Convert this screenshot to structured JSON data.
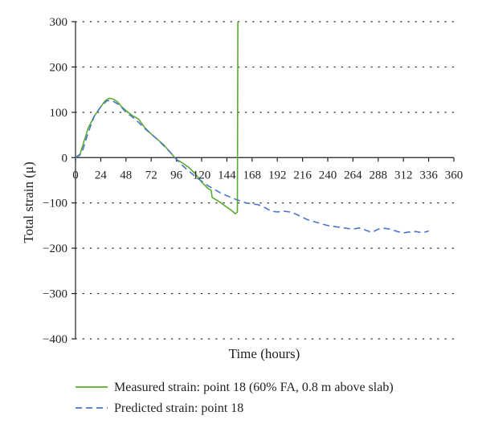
{
  "chart_data": {
    "type": "line",
    "title": "",
    "xlabel": "Time (hours)",
    "ylabel": "Total strain (μ)",
    "xlim": [
      0,
      360
    ],
    "ylim": [
      -400,
      300
    ],
    "xticks": [
      0,
      24,
      48,
      72,
      96,
      120,
      144,
      168,
      192,
      216,
      240,
      264,
      288,
      312,
      336,
      360
    ],
    "yticks": [
      -400,
      -300,
      -200,
      -100,
      0,
      100,
      200,
      300
    ],
    "x_tick_labels": [
      "0",
      "24",
      "48",
      "72",
      "96",
      "120",
      "144",
      "168",
      "192",
      "216",
      "240",
      "264",
      "288",
      "312",
      "336",
      "360"
    ],
    "y_tick_labels": [
      "−400",
      "−300",
      "−200",
      "−100",
      "0",
      "100",
      "200",
      "300"
    ],
    "grid": "horizontal dotted",
    "legend_position": "bottom",
    "series": [
      {
        "name": "Measured strain: point 18 (60% FA, 0.8 m above slab)",
        "color": "#5aac2e",
        "style": "solid",
        "points": [
          [
            0,
            0
          ],
          [
            4,
            5
          ],
          [
            8,
            35
          ],
          [
            12,
            65
          ],
          [
            18,
            92
          ],
          [
            24,
            112
          ],
          [
            28,
            125
          ],
          [
            32,
            131
          ],
          [
            36,
            129
          ],
          [
            40,
            123
          ],
          [
            44,
            112
          ],
          [
            48,
            104
          ],
          [
            54,
            93
          ],
          [
            60,
            85
          ],
          [
            66,
            66
          ],
          [
            72,
            52
          ],
          [
            78,
            40
          ],
          [
            84,
            28
          ],
          [
            90,
            12
          ],
          [
            96,
            -4
          ],
          [
            102,
            -12
          ],
          [
            108,
            -22
          ],
          [
            114,
            -36
          ],
          [
            120,
            -54
          ],
          [
            126,
            -68
          ],
          [
            129,
            -72
          ],
          [
            130,
            -88
          ],
          [
            136,
            -96
          ],
          [
            142,
            -106
          ],
          [
            148,
            -116
          ],
          [
            151,
            -122
          ],
          [
            152,
            -124
          ],
          [
            153,
            -122
          ],
          [
            154,
            -120
          ],
          [
            154.5,
            300
          ]
        ]
      },
      {
        "name": "Predicted strain: point 18",
        "color": "#4a75c9",
        "style": "dashed",
        "points": [
          [
            0,
            0
          ],
          [
            6,
            10
          ],
          [
            12,
            55
          ],
          [
            18,
            92
          ],
          [
            24,
            112
          ],
          [
            30,
            126
          ],
          [
            36,
            124
          ],
          [
            42,
            116
          ],
          [
            48,
            100
          ],
          [
            54,
            90
          ],
          [
            60,
            78
          ],
          [
            66,
            64
          ],
          [
            72,
            52
          ],
          [
            78,
            40
          ],
          [
            84,
            26
          ],
          [
            90,
            12
          ],
          [
            96,
            -4
          ],
          [
            102,
            -18
          ],
          [
            108,
            -30
          ],
          [
            114,
            -42
          ],
          [
            120,
            -52
          ],
          [
            126,
            -62
          ],
          [
            132,
            -70
          ],
          [
            138,
            -78
          ],
          [
            144,
            -84
          ],
          [
            150,
            -90
          ],
          [
            156,
            -95
          ],
          [
            162,
            -100
          ],
          [
            168,
            -102
          ],
          [
            174,
            -104
          ],
          [
            180,
            -110
          ],
          [
            186,
            -118
          ],
          [
            192,
            -120
          ],
          [
            198,
            -118
          ],
          [
            204,
            -120
          ],
          [
            210,
            -125
          ],
          [
            216,
            -132
          ],
          [
            222,
            -138
          ],
          [
            228,
            -142
          ],
          [
            234,
            -146
          ],
          [
            240,
            -150
          ],
          [
            246,
            -152
          ],
          [
            252,
            -154
          ],
          [
            258,
            -156
          ],
          [
            264,
            -158
          ],
          [
            270,
            -155
          ],
          [
            276,
            -160
          ],
          [
            282,
            -165
          ],
          [
            288,
            -158
          ],
          [
            294,
            -156
          ],
          [
            300,
            -158
          ],
          [
            306,
            -163
          ],
          [
            312,
            -166
          ],
          [
            318,
            -164
          ],
          [
            324,
            -163
          ],
          [
            330,
            -166
          ],
          [
            336,
            -162
          ]
        ]
      }
    ]
  }
}
